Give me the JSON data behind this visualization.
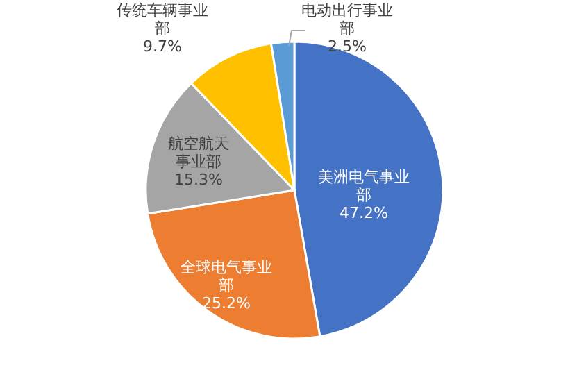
{
  "chart_data": {
    "type": "pie",
    "categories": [
      "美洲电气事业部",
      "全球电气事业部",
      "航空航天事业部",
      "传统车辆事业部",
      "电动出行事业部"
    ],
    "values": [
      47.2,
      25.2,
      15.3,
      9.7,
      2.5
    ],
    "value_labels": [
      "47.2%",
      "25.2%",
      "15.3%",
      "9.7%",
      "2.5%"
    ],
    "colors": [
      "#4472c4",
      "#ed7d31",
      "#a5a5a5",
      "#ffc000",
      "#5b9bd5"
    ]
  }
}
